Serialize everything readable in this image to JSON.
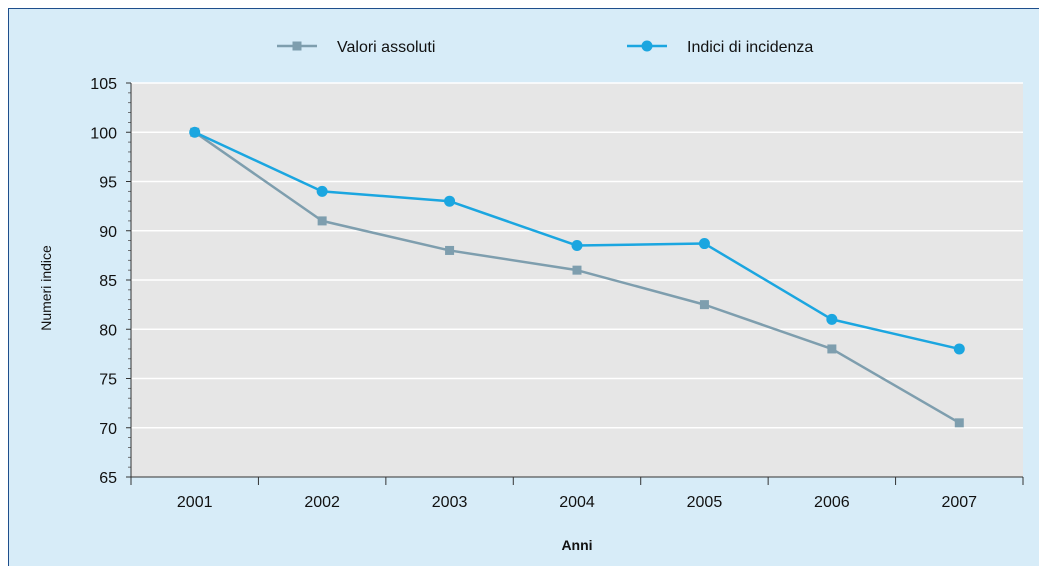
{
  "chart_data": {
    "type": "line",
    "categories": [
      "2001",
      "2002",
      "2003",
      "2004",
      "2005",
      "2006",
      "2007"
    ],
    "series": [
      {
        "name": "Valori assoluti",
        "values": [
          100,
          91,
          88,
          86,
          82.5,
          78,
          70.5
        ],
        "color": "#7e9eae",
        "marker": "square"
      },
      {
        "name": "Indici di incidenza",
        "values": [
          100,
          94,
          93,
          88.5,
          88.7,
          81,
          78
        ],
        "color": "#1ba6e0",
        "marker": "circle"
      }
    ],
    "xlabel": "Anni",
    "ylabel": "Numeri indice",
    "ylim": [
      65,
      105
    ],
    "yticks": [
      65,
      70,
      75,
      80,
      85,
      90,
      95,
      100,
      105
    ],
    "grid": true,
    "legend_position": "top",
    "colors": {
      "frame_background": "#d7ecf8",
      "plot_background": "#e6e6e6",
      "gridline": "#ffffff",
      "frame_border": "#1e4e8c"
    }
  }
}
